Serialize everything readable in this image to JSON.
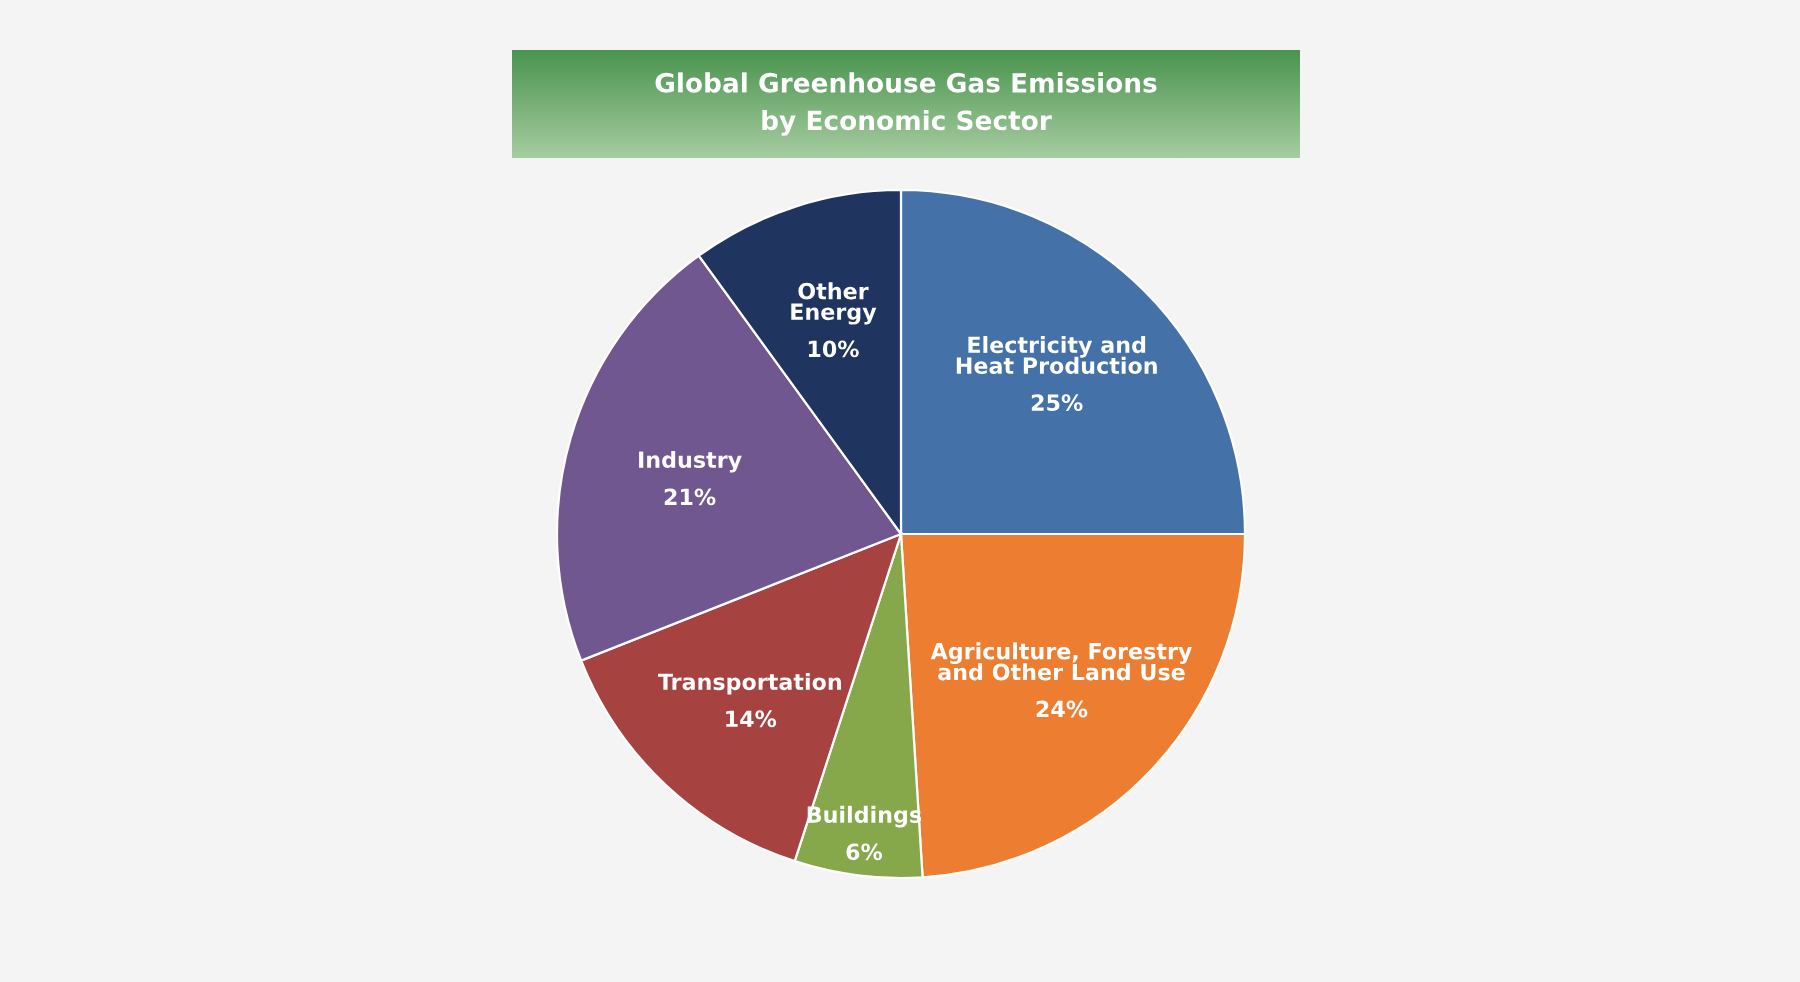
{
  "chart_data": {
    "type": "pie",
    "title": "Global Greenhouse Gas Emissions\nby Economic Sector",
    "categories": [
      "Electricity and\nHeat Production",
      "Agriculture, Forestry\nand Other Land Use",
      "Buildings",
      "Transportation",
      "Industry",
      "Other\nEnergy"
    ],
    "values": [
      25,
      24,
      6,
      14,
      21,
      10
    ],
    "value_labels": [
      "25%",
      "24%",
      "6%",
      "14%",
      "21%",
      "10%"
    ],
    "colors": [
      "#4472a8",
      "#ec7d31",
      "#87a74b",
      "#a6423f",
      "#71578f",
      "#1f355f"
    ]
  }
}
